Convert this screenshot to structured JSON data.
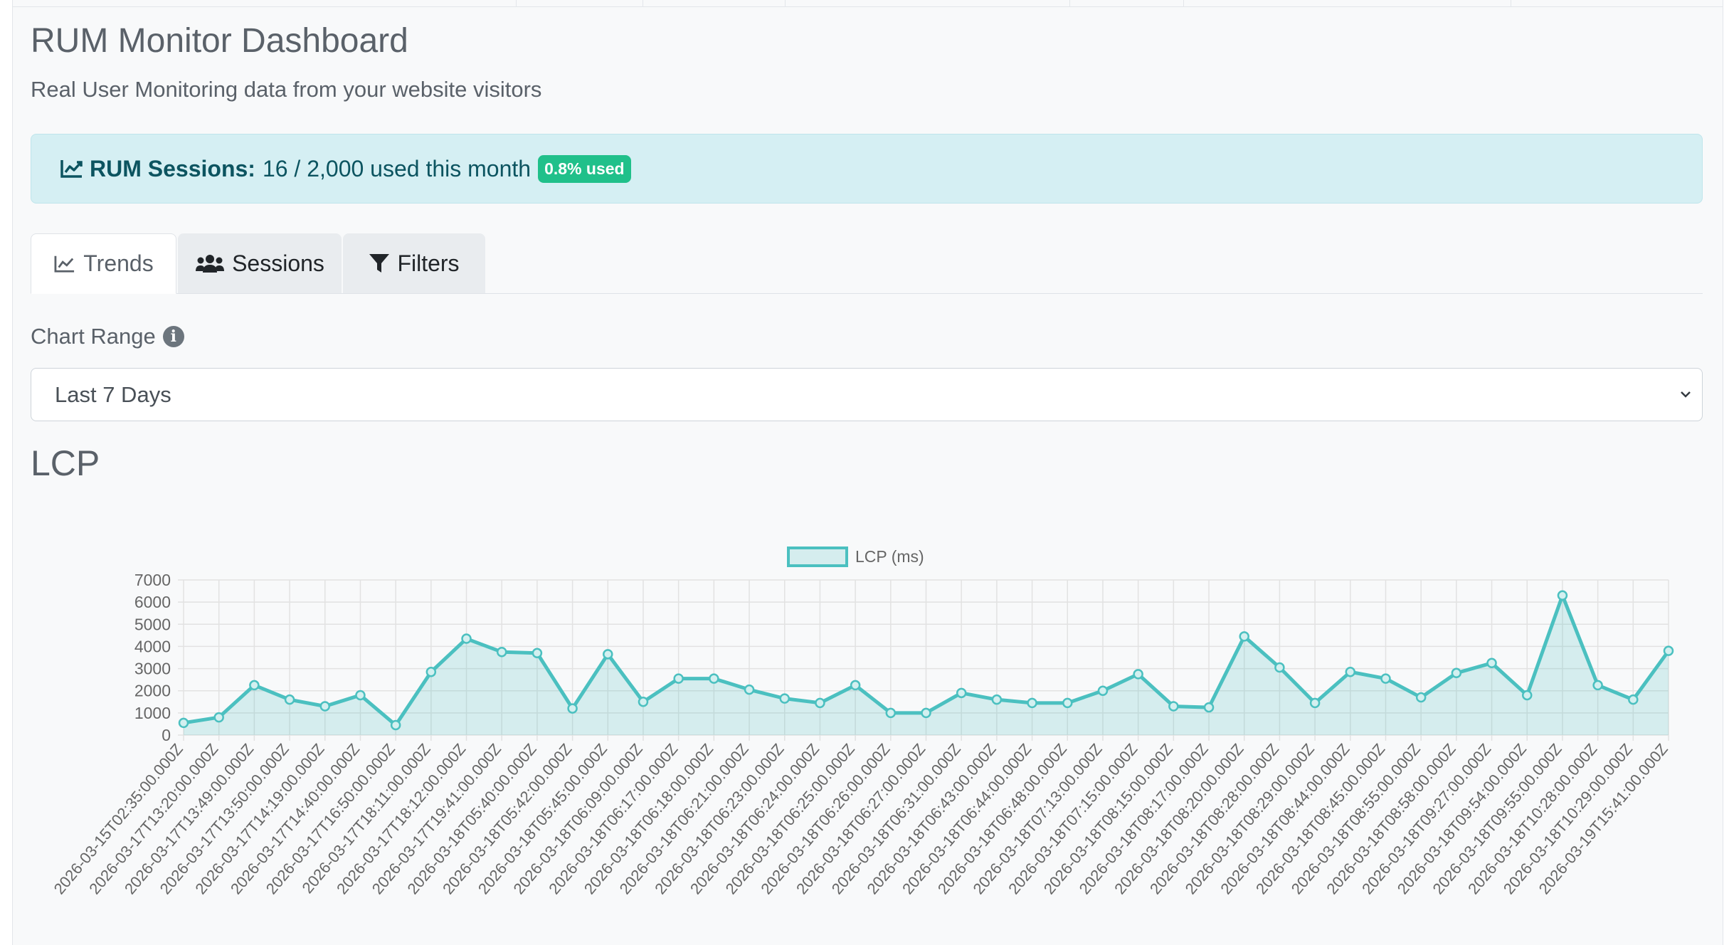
{
  "header": {
    "title": "RUM Monitor Dashboard",
    "subtitle": "Real User Monitoring data from your website visitors"
  },
  "alert": {
    "icon": "chart-line-icon",
    "label": "RUM Sessions:",
    "text": "16 / 2,000 used this month",
    "badge": "0.8% used"
  },
  "tabs": [
    {
      "label": "Trends",
      "icon": "chart-line-icon",
      "active": true
    },
    {
      "label": "Sessions",
      "icon": "users-icon",
      "active": false
    },
    {
      "label": "Filters",
      "icon": "filter-icon",
      "active": false
    }
  ],
  "range": {
    "label": "Chart Range",
    "selected": "Last 7 Days"
  },
  "section": {
    "title": "LCP"
  },
  "colors": {
    "series": "#4bc0c0",
    "fill": "rgba(75,192,192,0.2)",
    "badge": "#20c08a",
    "alert_bg": "#d5eff3"
  },
  "chart_data": {
    "type": "area",
    "title": "",
    "xlabel": "",
    "ylabel": "",
    "ylim": [
      0,
      7000
    ],
    "yticks": [
      0,
      1000,
      2000,
      3000,
      4000,
      5000,
      6000,
      7000
    ],
    "legend": "top-center",
    "grid": true,
    "x": [
      "2026-03-15T02:35:00.000Z",
      "2026-03-17T13:20:00.000Z",
      "2026-03-17T13:49:00.000Z",
      "2026-03-17T13:50:00.000Z",
      "2026-03-17T14:19:00.000Z",
      "2026-03-17T14:40:00.000Z",
      "2026-03-17T16:50:00.000Z",
      "2026-03-17T18:11:00.000Z",
      "2026-03-17T18:12:00.000Z",
      "2026-03-17T19:41:00.000Z",
      "2026-03-18T05:40:00.000Z",
      "2026-03-18T05:42:00.000Z",
      "2026-03-18T05:45:00.000Z",
      "2026-03-18T06:09:00.000Z",
      "2026-03-18T06:17:00.000Z",
      "2026-03-18T06:18:00.000Z",
      "2026-03-18T06:21:00.000Z",
      "2026-03-18T06:23:00.000Z",
      "2026-03-18T06:24:00.000Z",
      "2026-03-18T06:25:00.000Z",
      "2026-03-18T06:26:00.000Z",
      "2026-03-18T06:27:00.000Z",
      "2026-03-18T06:31:00.000Z",
      "2026-03-18T06:43:00.000Z",
      "2026-03-18T06:44:00.000Z",
      "2026-03-18T06:48:00.000Z",
      "2026-03-18T07:13:00.000Z",
      "2026-03-18T07:15:00.000Z",
      "2026-03-18T08:15:00.000Z",
      "2026-03-18T08:17:00.000Z",
      "2026-03-18T08:20:00.000Z",
      "2026-03-18T08:28:00.000Z",
      "2026-03-18T08:29:00.000Z",
      "2026-03-18T08:44:00.000Z",
      "2026-03-18T08:45:00.000Z",
      "2026-03-18T08:55:00.000Z",
      "2026-03-18T08:58:00.000Z",
      "2026-03-18T09:27:00.000Z",
      "2026-03-18T09:54:00.000Z",
      "2026-03-18T09:55:00.000Z",
      "2026-03-18T10:28:00.000Z",
      "2026-03-18T10:29:00.000Z",
      "2026-03-19T15:41:00.000Z"
    ],
    "series": [
      {
        "name": "LCP (ms)",
        "values": [
          550,
          800,
          2250,
          1600,
          1300,
          1800,
          450,
          2850,
          4350,
          3750,
          3700,
          1200,
          3650,
          1500,
          2550,
          2550,
          2050,
          1650,
          1450,
          2250,
          1000,
          1000,
          1900,
          1600,
          1450,
          1450,
          2000,
          2750,
          1300,
          1250,
          4450,
          3050,
          1450,
          2850,
          2550,
          1700,
          2800,
          3250,
          1800,
          6300,
          2250,
          1600,
          3800
        ]
      }
    ]
  }
}
